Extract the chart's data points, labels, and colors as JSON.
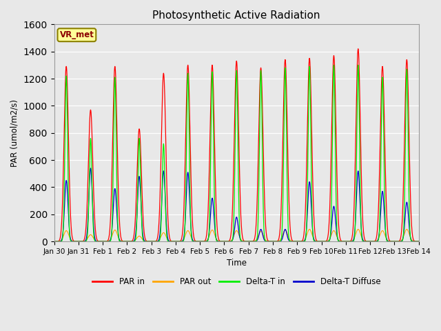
{
  "title": "Photosynthetic Active Radiation",
  "ylabel": "PAR (umol/m2/s)",
  "xlabel": "Time",
  "ylim": [
    0,
    1600
  ],
  "yticks": [
    0,
    200,
    400,
    600,
    800,
    1000,
    1200,
    1400,
    1600
  ],
  "xtick_labels": [
    "Jan 30",
    "Jan 31",
    "Feb 1",
    "Feb 2",
    "Feb 3",
    "Feb 4",
    "Feb 5",
    "Feb 6",
    "Feb 7",
    "Feb 8",
    "Feb 9",
    "Feb 10",
    "Feb 11",
    "Feb 12",
    "Feb 13",
    "Feb 14"
  ],
  "color_par_in": "#FF0000",
  "color_par_out": "#FFA500",
  "color_delta_t_in": "#00EE00",
  "color_delta_t_diffuse": "#0000CC",
  "label_box_text": "VR_met",
  "label_box_facecolor": "#FFFF99",
  "label_box_edgecolor": "#8B8000",
  "label_box_textcolor": "#8B0000",
  "background_color": "#E8E8E8",
  "axes_bg_color": "#E8E8E8",
  "legend_labels": [
    "PAR in",
    "PAR out",
    "Delta-T in",
    "Delta-T Diffuse"
  ],
  "legend_colors": [
    "#FF0000",
    "#FFA500",
    "#00EE00",
    "#0000CC"
  ],
  "par_in_peaks": [
    1290,
    970,
    1290,
    830,
    1240,
    1300,
    1300,
    1330,
    1280,
    1340,
    1350,
    1370,
    1420,
    1290,
    1340
  ],
  "par_out_peaks": [
    80,
    50,
    85,
    40,
    65,
    80,
    85,
    80,
    75,
    85,
    90,
    80,
    90,
    80,
    90
  ],
  "delta_t_in_peaks": [
    1220,
    760,
    1210,
    760,
    720,
    1240,
    1250,
    1260,
    1260,
    1280,
    1290,
    1300,
    1300,
    1210,
    1270
  ],
  "delta_t_diff_peaks": [
    450,
    540,
    390,
    480,
    520,
    510,
    320,
    180,
    90,
    90,
    440,
    260,
    520,
    370,
    290
  ]
}
